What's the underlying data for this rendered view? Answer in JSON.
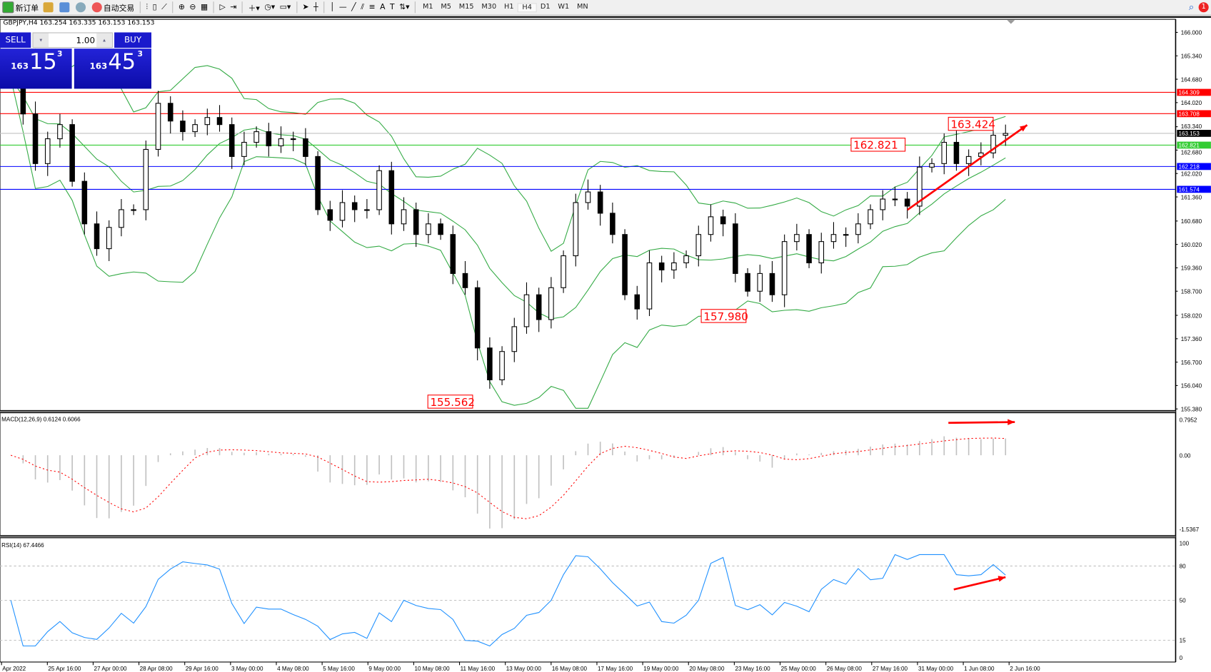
{
  "toolbar": {
    "new_order": "新订单",
    "auto_trading": "自动交易",
    "timeframes": [
      "M1",
      "M5",
      "M15",
      "M30",
      "H1",
      "H4",
      "D1",
      "W1",
      "MN"
    ],
    "active_timeframe": "H4",
    "notification_count": "1"
  },
  "header": {
    "symbol_info": "GBPJPY,H4  163.254 163.335 163.153 163.153"
  },
  "trade_panel": {
    "sell": "SELL",
    "buy": "BUY",
    "lot": "1.00",
    "sell_big": "15",
    "sell_prefix": "163",
    "sell_sup": "3",
    "buy_big": "45",
    "buy_prefix": "163",
    "buy_sup": "3"
  },
  "chart_data": {
    "type": "candlestick",
    "symbol": "GBPJPY",
    "timeframe": "H4",
    "price_ticks": [
      "166.000",
      "165.340",
      "164.680",
      "164.020",
      "163.340",
      "162.680",
      "162.020",
      "161.360",
      "160.680",
      "160.020",
      "159.360",
      "158.700",
      "158.020",
      "157.360",
      "156.700",
      "156.040",
      "155.380"
    ],
    "ylim": [
      155.38,
      166.0
    ],
    "closes": [
      164.7,
      163.7,
      162.3,
      163.0,
      163.4,
      161.8,
      160.6,
      159.9,
      160.5,
      161.0,
      161.0,
      162.7,
      164.0,
      163.5,
      163.2,
      163.4,
      163.6,
      163.4,
      162.5,
      162.9,
      163.2,
      162.8,
      163.0,
      163.0,
      162.5,
      161.0,
      160.7,
      161.2,
      161.0,
      161.0,
      162.1,
      160.6,
      161.0,
      160.3,
      160.6,
      160.3,
      159.2,
      158.8,
      157.1,
      156.2,
      157.0,
      157.7,
      158.6,
      157.9,
      158.8,
      159.7,
      161.2,
      161.5,
      160.9,
      160.3,
      158.6,
      158.2,
      159.5,
      159.3,
      159.5,
      159.7,
      160.3,
      160.8,
      160.6,
      159.2,
      158.7,
      159.2,
      158.6,
      160.1,
      160.3,
      159.5,
      160.1,
      160.3,
      160.3,
      160.6,
      161.0,
      161.3,
      161.3,
      161.1,
      162.2,
      162.3,
      162.9,
      162.3,
      162.5,
      162.6,
      163.1,
      163.15
    ],
    "date_labels": [
      "Apr 2022",
      "25 Apr 16:00",
      "27 Apr 00:00",
      "28 Apr 08:00",
      "29 Apr 16:00",
      "3 May 00:00",
      "4 May 08:00",
      "5 May 16:00",
      "9 May 00:00",
      "10 May 08:00",
      "11 May 16:00",
      "13 May 00:00",
      "16 May 08:00",
      "17 May 16:00",
      "19 May 00:00",
      "20 May 08:00",
      "23 May 16:00",
      "25 May 00:00",
      "26 May 08:00",
      "27 May 16:00",
      "31 May 00:00",
      "1 Jun 08:00",
      "2 Jun 16:00"
    ],
    "hlines": [
      {
        "price": "164.309",
        "color": "#ff0000"
      },
      {
        "price": "163.708",
        "color": "#ff0000"
      },
      {
        "price": "163.153",
        "color": "#000000",
        "line": "#c0c0c0"
      },
      {
        "price": "162.821",
        "color": "#33cc33"
      },
      {
        "price": "162.218",
        "color": "#0000ff"
      },
      {
        "price": "161.574",
        "color": "#0000ff"
      }
    ],
    "annotations": [
      "163.424",
      "162.821",
      "157.980",
      "155.562"
    ],
    "indicators": {
      "bollinger_color": "#33aa44",
      "macd": {
        "label": "MACD(12,26,9) 0.6124 0.6066",
        "ticks": [
          "0.7952",
          "0.00",
          "-1.5367"
        ],
        "signal_color": "#ff0000"
      },
      "rsi": {
        "label": "RSI(14) 67.4466",
        "ticks": [
          "100",
          "80",
          "50",
          "15",
          "0"
        ],
        "color": "#1e90ff"
      }
    }
  }
}
